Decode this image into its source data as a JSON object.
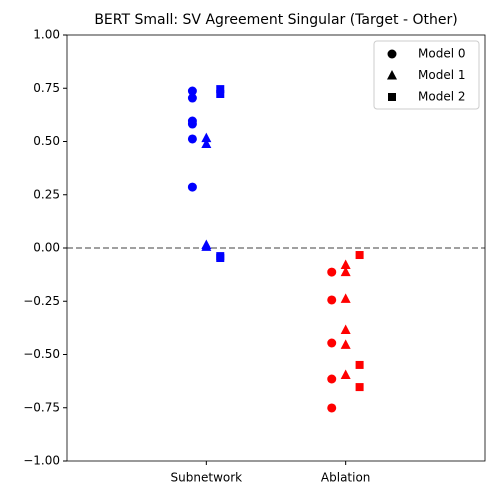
{
  "chart_data": {
    "type": "scatter",
    "title": "BERT Small: SV Agreement Singular (Target - Other)",
    "categories": [
      "Subnetwork",
      "Ablation"
    ],
    "category_colors": [
      "#0000ff",
      "#ff0000"
    ],
    "series": [
      {
        "name": "Model 0",
        "marker": "circle",
        "offset": -0.1,
        "values": [
          [
            0.737,
            0.704,
            0.596,
            0.582,
            0.512,
            0.286
          ],
          [
            -0.113,
            -0.244,
            -0.446,
            -0.615,
            -0.751
          ]
        ]
      },
      {
        "name": "Model 1",
        "marker": "triangle",
        "offset": 0,
        "values": [
          [
            0.516,
            0.488,
            0.014,
            0.005
          ],
          [
            -0.08,
            -0.113,
            -0.239,
            -0.385,
            -0.455,
            -0.596
          ]
        ]
      },
      {
        "name": "Model 2",
        "marker": "square",
        "offset": 0.1,
        "values": [
          [
            0.746,
            0.723,
            -0.038,
            -0.047
          ],
          [
            -0.033,
            -0.549,
            -0.653
          ]
        ]
      }
    ],
    "xlim": [
      -1,
      2
    ],
    "ylim": [
      -1,
      1
    ],
    "yticks": [
      {
        "value": -1,
        "label": "−1.00"
      },
      {
        "value": -0.75,
        "label": "−0.75"
      },
      {
        "value": -0.5,
        "label": "−0.50"
      },
      {
        "value": -0.25,
        "label": "−0.25"
      },
      {
        "value": 0,
        "label": "0.00"
      },
      {
        "value": 0.25,
        "label": "0.25"
      },
      {
        "value": 0.5,
        "label": "0.50"
      },
      {
        "value": 0.75,
        "label": "0.75"
      },
      {
        "value": 1,
        "label": "1.00"
      }
    ],
    "hline": 0,
    "legend": "upper right"
  }
}
